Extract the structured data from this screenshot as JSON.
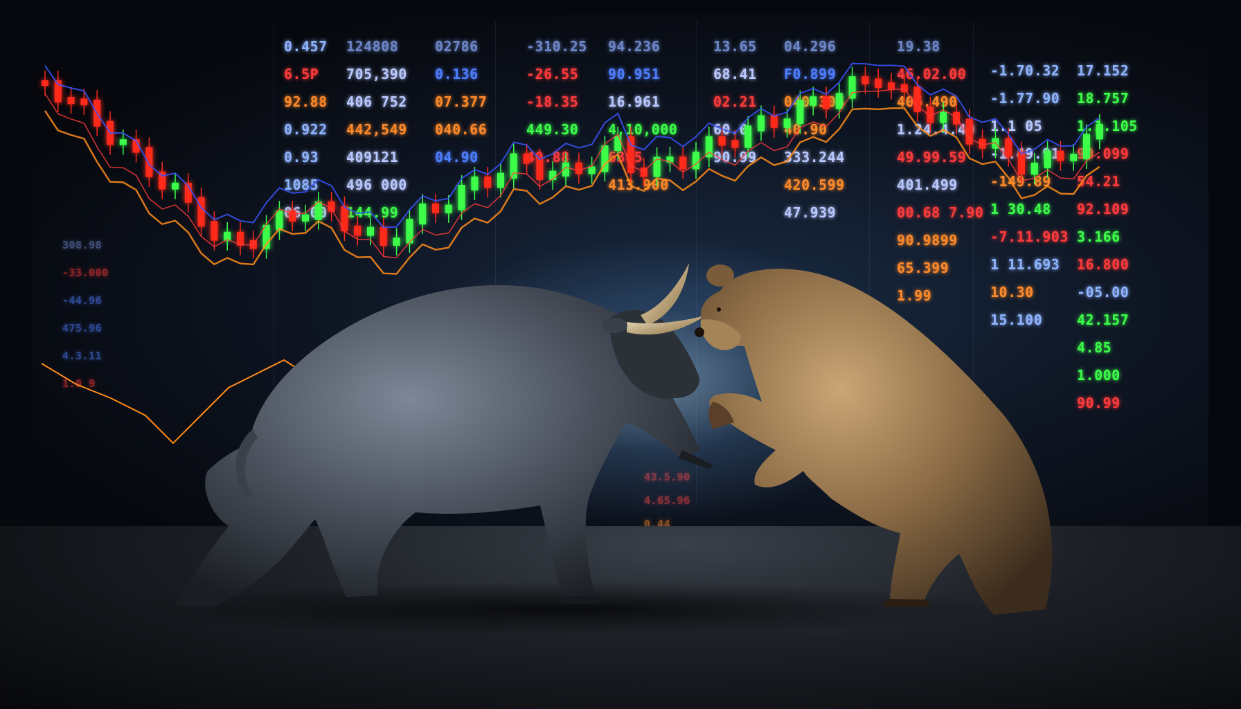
{
  "tickers": {
    "c1": [
      {
        "text": "0.457",
        "color": "#8fb4ff"
      },
      {
        "text": "6.5P",
        "color": "#ff3b3b"
      },
      {
        "text": "92.88",
        "color": "#ff8a2a"
      },
      {
        "text": "0.922",
        "color": "#8fb4ff"
      },
      {
        "text": "0.93",
        "color": "#8fb4ff"
      },
      {
        "text": "1085",
        "color": "#8fb4ff"
      },
      {
        "text": "06.00",
        "color": "#b9c8ff"
      }
    ],
    "c2": [
      {
        "text": "124808",
        "color": "#6d86c8"
      },
      {
        "text": "705,390",
        "color": "#b9c8ff"
      },
      {
        "text": "406 752",
        "color": "#b9c8ff"
      },
      {
        "text": "442,549",
        "color": "#ff8a2a"
      },
      {
        "text": "409121",
        "color": "#b9c8ff"
      },
      {
        "text": "496 000",
        "color": "#b9c8ff"
      },
      {
        "text": "144.99",
        "color": "#3dff4a"
      }
    ],
    "c3": [
      {
        "text": "02786",
        "color": "#6d86c8"
      },
      {
        "text": "0.136",
        "color": "#4f7dff"
      },
      {
        "text": "07.377",
        "color": "#ff8a2a"
      },
      {
        "text": "040.66",
        "color": "#ff8a2a"
      },
      {
        "text": "04.90",
        "color": "#4f7dff"
      }
    ],
    "c4": [
      {
        "text": "-310.25",
        "color": "#6d86c8"
      },
      {
        "text": "-26.55",
        "color": "#ff3b3b"
      },
      {
        "text": "-18.35",
        "color": "#ff3b3b"
      },
      {
        "text": "449.30",
        "color": "#3dff4a"
      },
      {
        "text": "40.88",
        "color": "#ff3b3b"
      }
    ],
    "c5": [
      {
        "text": "94.236",
        "color": "#6d86c8"
      },
      {
        "text": "90.951",
        "color": "#4f7dff"
      },
      {
        "text": "16.961",
        "color": "#b9c8ff"
      },
      {
        "text": "4,10,000",
        "color": "#3dff4a"
      },
      {
        "text": "6385",
        "color": "#ff3b3b"
      },
      {
        "text": "413.900",
        "color": "#ff8a2a"
      }
    ],
    "c6": [
      {
        "text": "13.65",
        "color": "#6d86c8"
      },
      {
        "text": "68.41",
        "color": "#b9c8ff"
      },
      {
        "text": "02.21",
        "color": "#ff3b3b"
      },
      {
        "text": "60.0",
        "color": "#b9c8ff"
      },
      {
        "text": "90.99",
        "color": "#b9c8ff"
      }
    ],
    "c7": [
      {
        "text": "04.296",
        "color": "#6d86c8"
      },
      {
        "text": "F0.899",
        "color": "#4f7dff"
      },
      {
        "text": "040.306",
        "color": "#ff8a2a"
      },
      {
        "text": "40.90",
        "color": "#ff8a2a"
      },
      {
        "text": "333.244",
        "color": "#b9c8ff"
      },
      {
        "text": "420.599",
        "color": "#ff8a2a"
      },
      {
        "text": "47.939",
        "color": "#b9c8ff"
      }
    ],
    "c8": [
      {
        "text": "19.38",
        "color": "#6d86c8"
      },
      {
        "text": "46.02.00",
        "color": "#ff3b3b"
      },
      {
        "text": "406.490",
        "color": "#ff8a2a"
      },
      {
        "text": "1.24.4.40",
        "color": "#b9c8ff"
      },
      {
        "text": "49.99.59",
        "color": "#ff3b3b"
      },
      {
        "text": "401.499",
        "color": "#b9c8ff"
      },
      {
        "text": "00.68 7.90",
        "color": "#ff3b3b"
      },
      {
        "text": "90.9899",
        "color": "#ff8a2a"
      },
      {
        "text": "65.399",
        "color": "#ff8a2a"
      },
      {
        "text": "1.99",
        "color": "#ff8a2a"
      }
    ],
    "c9": [
      {
        "text": "-1.70.32",
        "color": "#8fb4ff"
      },
      {
        "text": "-1.77.90",
        "color": "#8fb4ff"
      },
      {
        "text": "1.1 05",
        "color": "#b9c8ff"
      },
      {
        "text": "-1.49.91",
        "color": "#b9c8ff"
      },
      {
        "text": "-149.89",
        "color": "#ff8a2a"
      },
      {
        "text": "1 30.48",
        "color": "#3dff4a"
      },
      {
        "text": "-7.11.903",
        "color": "#ff3b3b"
      },
      {
        "text": "1 11.693",
        "color": "#8fb4ff"
      },
      {
        "text": "10.30",
        "color": "#ff8a2a"
      },
      {
        "text": "15.100",
        "color": "#8fb4ff"
      }
    ],
    "c10": [
      {
        "text": "17.152",
        "color": "#8fb4ff"
      },
      {
        "text": "18.757",
        "color": "#3dff4a"
      },
      {
        "text": "1.1.105",
        "color": "#3dff4a"
      },
      {
        "text": "90.099",
        "color": "#ff3b3b"
      },
      {
        "text": "54.21",
        "color": "#ff3b3b"
      },
      {
        "text": "92.109",
        "color": "#ff3b3b"
      },
      {
        "text": "3.166",
        "color": "#3dff4a"
      },
      {
        "text": "16.800",
        "color": "#ff3b3b"
      },
      {
        "text": "-05.00",
        "color": "#8fb4ff"
      },
      {
        "text": "42.157",
        "color": "#3dff4a"
      },
      {
        "text": "4.85",
        "color": "#3dff4a"
      },
      {
        "text": "1.000",
        "color": "#3dff4a"
      },
      {
        "text": "90.99",
        "color": "#ff3b3b"
      }
    ],
    "left": [
      {
        "text": "308.98",
        "color": "#6d86c8"
      },
      {
        "text": "-33.000",
        "color": "#ff3b3b"
      },
      {
        "text": "-44.96",
        "color": "#4f7dff"
      },
      {
        "text": "475.96",
        "color": "#4f7dff"
      },
      {
        "text": "4.3.11",
        "color": "#4f7dff"
      },
      {
        "text": "1.0 9",
        "color": "#ff3b3b"
      }
    ],
    "bottom": [
      {
        "text": "43.5.90",
        "color": "#ff3b3b"
      },
      {
        "text": "4.65.96",
        "color": "#ff3b3b"
      },
      {
        "text": "0.44",
        "color": "#ff8a2a"
      }
    ]
  },
  "colors": {
    "up": "#3dff4a",
    "down": "#ff2a1a",
    "line_orange": "#ff8c1a",
    "line_blue": "#3a55ff",
    "line_red": "#ff3b3b"
  },
  "figures": {
    "left": "bull",
    "right": "bear"
  }
}
